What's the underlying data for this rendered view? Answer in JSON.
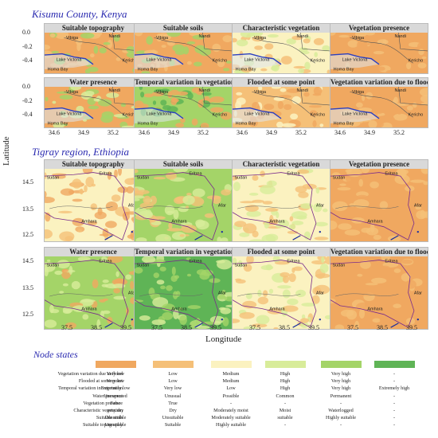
{
  "regions": {
    "kisumu": {
      "title": "Kisumu County, Kenya"
    },
    "tigray": {
      "title": "Tigray region, Ethiopia"
    }
  },
  "panel_titles": [
    "Suitable topography",
    "Suitable soils",
    "Characteristic vegetation",
    "Vegetation presence",
    "Water presence",
    "Temporal variation in vegetation",
    "Flooded at some point",
    "Vegetation variation due to flood"
  ],
  "kisumu_labels": {
    "a": "Vibiga",
    "b": "Nandi",
    "c": "Lake Victoria",
    "d": "Kericho",
    "e": "Homa Bay"
  },
  "tigray_labels": {
    "a": "Sudan",
    "b": "Eritrea",
    "c": "Afar",
    "d": "Amhara"
  },
  "axes": {
    "ylabel": "Latitude",
    "xlabel": "Longitude",
    "kisumu_y": [
      "0.0",
      "-0.2",
      "-0.4",
      "0.0",
      "-0.2",
      "-0.4"
    ],
    "kisumu_x": [
      "34.6",
      "34.9",
      "35.2",
      "34.6",
      "34.9",
      "35.2",
      "34.6",
      "34.9",
      "35.2",
      "34.6",
      "34.9",
      "35.2"
    ],
    "tigray_y": [
      "14.5",
      "13.5",
      "12.5",
      "14.5",
      "13.5",
      "12.5"
    ],
    "tigray_x": [
      "37.5",
      "38.5",
      "39.5",
      "37.5",
      "38.5",
      "39.5",
      "37.5",
      "38.5",
      "39.5",
      "37.5",
      "38.5",
      "39.5"
    ]
  },
  "legend": {
    "title": "Node states",
    "colors": [
      "#f0a860",
      "#f5c078",
      "#fbf2c0",
      "#d8ec9a",
      "#a4d468",
      "#5fb456"
    ],
    "rows": [
      {
        "label": "Vegetation variation due to flood",
        "values": [
          "Very low",
          "Low",
          "Medium",
          "High",
          "Very high",
          "-"
        ]
      },
      {
        "label": "Flooded at some point",
        "values": [
          "Very low",
          "Low",
          "Medium",
          "High",
          "Very high",
          "-"
        ]
      },
      {
        "label": "Temporal variation in vegetation",
        "values": [
          "Extremely low",
          "Very low",
          "Low",
          "High",
          "Very high",
          "Extremely high"
        ]
      },
      {
        "label": "Water presence",
        "values": [
          "Unexpected",
          "Unusual",
          "Possible",
          "Common",
          "Permanent",
          "-"
        ]
      },
      {
        "label": "Vegetation presence",
        "values": [
          "False",
          "True",
          "-",
          "-",
          "-",
          "-"
        ]
      },
      {
        "label": "Characteristic vegetation",
        "values": [
          "very dry",
          "Dry",
          "Moderately moist",
          "Moist",
          "Waterlogged",
          "-"
        ]
      },
      {
        "label": "Suitable soils",
        "values": [
          "Unsuitable",
          "Unsuitable",
          "Moderately suitable",
          "suitable",
          "Highly suitable",
          "-"
        ]
      },
      {
        "label": "Suitable topography",
        "values": [
          "Unsuitable",
          "Suitable",
          "Highly suitable",
          "-",
          "-",
          "-"
        ]
      }
    ]
  }
}
